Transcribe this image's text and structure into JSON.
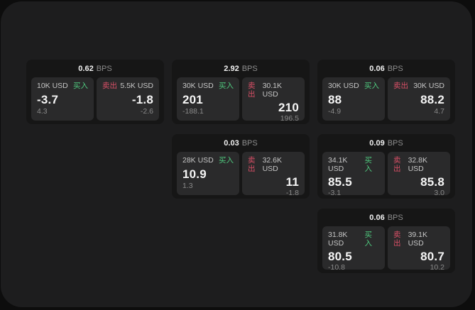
{
  "labels": {
    "bps_unit": "BPS",
    "buy": "买入",
    "sell": "卖出"
  },
  "colors": {
    "panel": "#1d1d1e",
    "card": "#161616",
    "cell": "#2a2a2b",
    "buy": "#4fc97e",
    "sell": "#d84f66"
  },
  "cards": [
    {
      "bps": "0.62",
      "grid": {
        "col": 1,
        "row": 1
      },
      "buy": {
        "amount": "10K USD",
        "value": "-3.7",
        "delta": "4.3"
      },
      "sell": {
        "amount": "5.5K USD",
        "value": "-1.8",
        "delta": "-2.6"
      }
    },
    {
      "bps": "2.92",
      "grid": {
        "col": 2,
        "row": 1
      },
      "buy": {
        "amount": "30K USD",
        "value": "201",
        "delta": "-188.1"
      },
      "sell": {
        "amount": "30.1K USD",
        "value": "210",
        "delta": "196.5"
      }
    },
    {
      "bps": "0.06",
      "grid": {
        "col": 3,
        "row": 1
      },
      "buy": {
        "amount": "30K USD",
        "value": "88",
        "delta": "-4.9"
      },
      "sell": {
        "amount": "30K USD",
        "value": "88.2",
        "delta": "4.7"
      }
    },
    {
      "bps": "0.03",
      "grid": {
        "col": 2,
        "row": 2
      },
      "buy": {
        "amount": "28K USD",
        "value": "10.9",
        "delta": "1.3"
      },
      "sell": {
        "amount": "32.6K USD",
        "value": "11",
        "delta": "-1.8"
      }
    },
    {
      "bps": "0.09",
      "grid": {
        "col": 3,
        "row": 2
      },
      "buy": {
        "amount": "34.1K USD",
        "value": "85.5",
        "delta": "-3.1"
      },
      "sell": {
        "amount": "32.8K USD",
        "value": "85.8",
        "delta": "3.0"
      }
    },
    {
      "bps": "0.06",
      "grid": {
        "col": 3,
        "row": 3
      },
      "buy": {
        "amount": "31.8K USD",
        "value": "80.5",
        "delta": "-10.8"
      },
      "sell": {
        "amount": "39.1K USD",
        "value": "80.7",
        "delta": "10.2"
      }
    }
  ]
}
